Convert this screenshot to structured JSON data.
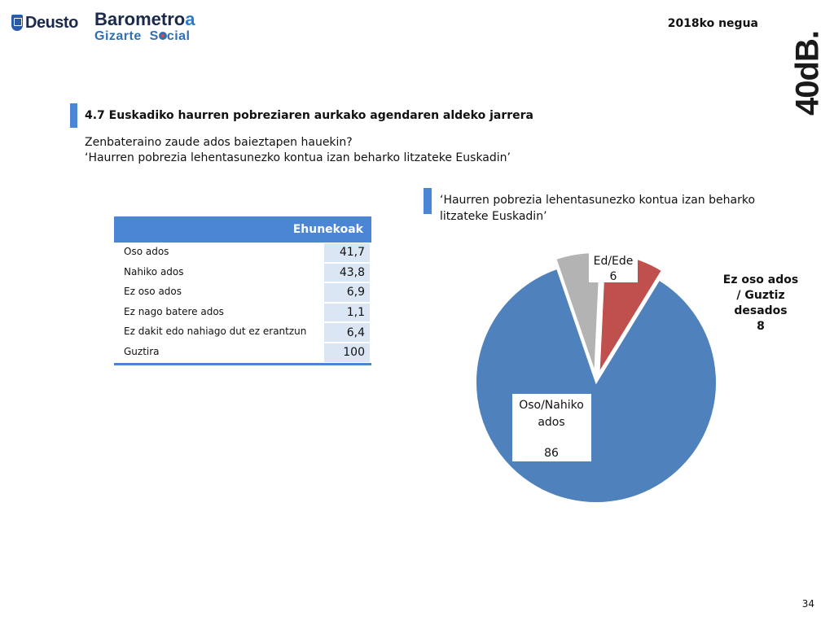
{
  "header": {
    "deusto_logo_text": "Deusto",
    "barometro_text_main": "Barometro",
    "barometro_text_accent": "a",
    "gizarte_text": "Gizarte",
    "social_s": "S",
    "social_rest": "cial",
    "season": "2018ko negua",
    "brand": "40dB."
  },
  "section": {
    "title": "4.7 Euskadiko haurren pobreziaren aurkako agendaren aldeko jarrera",
    "question_line1": "Zenbateraino zaude ados baieztapen hauekin?",
    "question_line2": "‘Haurren pobrezia lehentasunezko kontua izan beharko litzateke Euskadin’"
  },
  "table": {
    "header": "Ehunekoak",
    "rows": [
      {
        "label": "Oso ados",
        "value": "41,7"
      },
      {
        "label": "Nahiko ados",
        "value": "43,8"
      },
      {
        "label": "Ez oso ados",
        "value": "6,9"
      },
      {
        "label": "Ez nago batere ados",
        "value": "1,1"
      },
      {
        "label": "Ez dakit edo nahiago dut ez erantzun",
        "value": "6,4"
      },
      {
        "label": "Guztira",
        "value": "100"
      }
    ]
  },
  "chart_data": {
    "type": "pie",
    "title": "‘Haurren pobrezia lehentasunezko kontua izan beharko litzateke Euskadin’",
    "slices": [
      {
        "label": "Oso/Nahiko ados",
        "value": 86,
        "color": "#4f81bd"
      },
      {
        "label": "Ed/Ede",
        "value": 6,
        "color": "#b3b3b3"
      },
      {
        "label": "Ez oso ados / Guztiz desados",
        "value": 8,
        "color": "#c0504d"
      }
    ]
  },
  "labels": {
    "blue_line1": "Oso/Nahiko",
    "blue_line2": "ados",
    "blue_value": "86",
    "gray_line1": "Ed/Ede",
    "gray_value": "6",
    "red_line1": "Ez oso ados",
    "red_line2": "/ Guztiz",
    "red_line3": "desados",
    "red_value": "8"
  },
  "page_number": "34"
}
